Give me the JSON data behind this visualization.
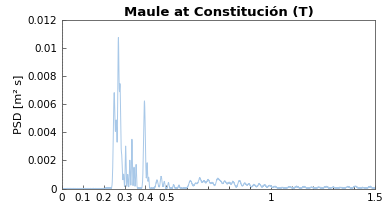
{
  "title": "Maule at Constitución (T)",
  "ylabel": "PSD [m² s]",
  "xlim": [
    0,
    1.5
  ],
  "ylim": [
    0,
    0.012
  ],
  "yticks": [
    0,
    0.002,
    0.004,
    0.006,
    0.008,
    0.01,
    0.012
  ],
  "xtick_vals": [
    0,
    0.1,
    0.2,
    0.3,
    0.4,
    0.5,
    1.0,
    1.5
  ],
  "xtick_labels": [
    "0",
    "0.1",
    "0.2",
    "0.3",
    "0.4",
    "0.5",
    "1",
    "1.5"
  ],
  "ytick_labels": [
    "0",
    "0.002",
    "0.004",
    "0.006",
    "0.008",
    "0.01",
    "0.012"
  ],
  "line_color": "#a8c8e8",
  "bg_color": "#ffffff",
  "title_fontsize": 9.5,
  "label_fontsize": 8,
  "tick_fontsize": 7.5
}
